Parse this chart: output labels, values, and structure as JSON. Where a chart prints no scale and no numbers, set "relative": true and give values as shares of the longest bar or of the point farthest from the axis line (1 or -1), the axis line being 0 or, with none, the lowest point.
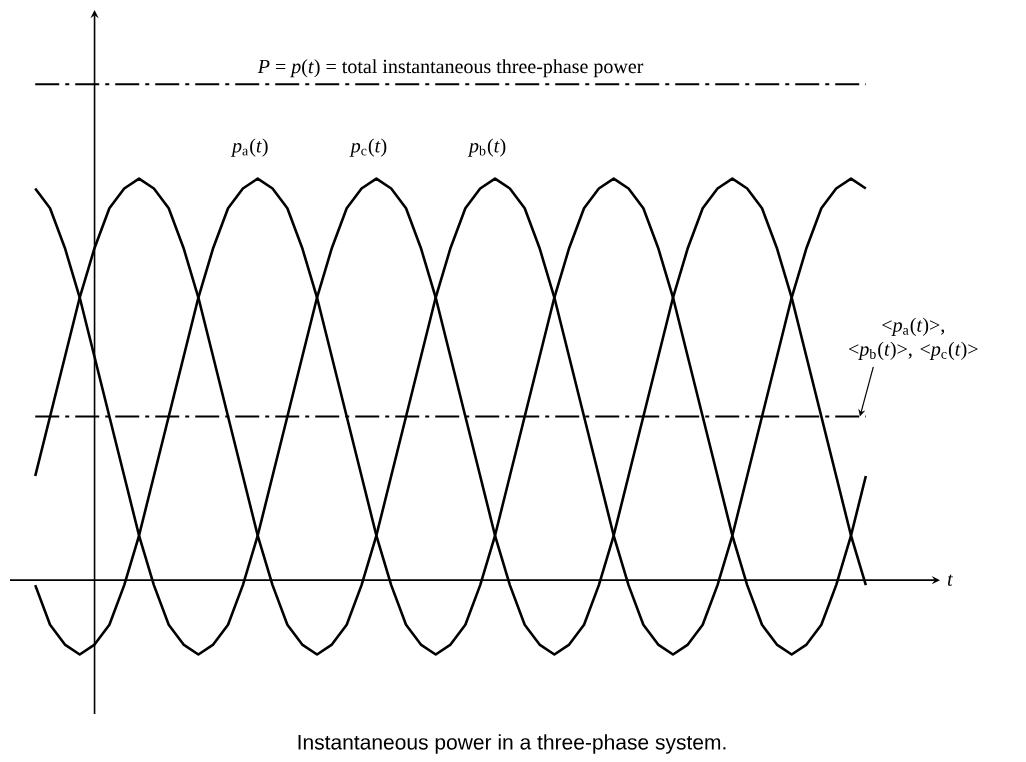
{
  "chart_data": {
    "type": "line",
    "relative": true,
    "xlabel": "t",
    "categories": [
      null,
      null,
      null,
      null,
      null,
      null,
      null,
      null,
      null,
      null,
      null,
      null,
      null,
      null,
      null,
      null,
      null,
      null,
      null,
      null,
      null,
      null,
      null,
      null,
      null,
      null,
      null,
      null,
      null,
      null,
      null,
      null,
      null,
      null,
      null,
      null,
      null,
      null,
      null,
      null,
      null,
      null,
      null,
      null,
      null,
      null,
      null,
      null,
      null,
      null,
      null,
      null,
      null,
      null,
      null,
      null,
      null
    ],
    "series": [
      {
        "name": "*P* = *p*(*t*) = total instantaneous three-phase power",
        "color": "#000000",
        "line_style": "dashed",
        "values": [
          1,
          1,
          1,
          1,
          1,
          1,
          1,
          1,
          1,
          1,
          1,
          1,
          1,
          1,
          1,
          1,
          1,
          1,
          1,
          1,
          1,
          1,
          1,
          1,
          1,
          1,
          1,
          1,
          1,
          1,
          1,
          1,
          1,
          1,
          1,
          1,
          1,
          1,
          1,
          1,
          1,
          1,
          1,
          1,
          1,
          1,
          1,
          1,
          1,
          1,
          1,
          1,
          1,
          1,
          1,
          1,
          1
        ]
      },
      {
        "name": "*p*$_{a}$(*t*)",
        "color": "#000000",
        "values": [
          -0.01,
          -0.09,
          -0.13,
          -0.15,
          -0.13,
          -0.09,
          -0.01,
          0.09,
          0.21,
          0.33,
          0.45,
          0.57,
          0.67,
          0.75,
          0.79,
          0.81,
          0.79,
          0.75,
          0.67,
          0.57,
          0.45,
          0.33,
          0.21,
          0.09,
          -0.01,
          -0.09,
          -0.13,
          -0.15,
          -0.13,
          -0.09,
          -0.01,
          0.09,
          0.21,
          0.33,
          0.45,
          0.57,
          0.67,
          0.75,
          0.79,
          0.81,
          0.79,
          0.75,
          0.67,
          0.57,
          0.45,
          0.33,
          0.21,
          0.09,
          -0.01,
          -0.09,
          -0.13,
          -0.15,
          -0.13,
          -0.09,
          -0.01,
          0.09,
          0.21
        ]
      },
      {
        "name": "*p*$_{c}$(*t*)",
        "color": "#000000",
        "values": [
          0.79,
          0.75,
          0.67,
          0.57,
          0.45,
          0.33,
          0.21,
          0.09,
          -0.01,
          -0.09,
          -0.13,
          -0.15,
          -0.13,
          -0.09,
          -0.01,
          0.09,
          0.21,
          0.33,
          0.45,
          0.57,
          0.67,
          0.75,
          0.79,
          0.81,
          0.79,
          0.75,
          0.67,
          0.57,
          0.45,
          0.33,
          0.21,
          0.09,
          -0.01,
          -0.09,
          -0.13,
          -0.15,
          -0.13,
          -0.09,
          -0.01,
          0.09,
          0.21,
          0.33,
          0.45,
          0.57,
          0.67,
          0.75,
          0.79,
          0.81,
          0.79,
          0.75,
          0.67,
          0.57,
          0.45,
          0.33,
          0.21,
          0.09,
          -0.01
        ]
      },
      {
        "name": "*p*$_{b}$(*t*)",
        "color": "#000000",
        "values": [
          0.21,
          0.33,
          0.45,
          0.57,
          0.67,
          0.75,
          0.79,
          0.81,
          0.79,
          0.75,
          0.67,
          0.57,
          0.45,
          0.33,
          0.21,
          0.09,
          -0.01,
          -0.09,
          -0.13,
          -0.15,
          -0.13,
          -0.09,
          -0.01,
          0.09,
          0.21,
          0.33,
          0.45,
          0.57,
          0.67,
          0.75,
          0.79,
          0.81,
          0.79,
          0.75,
          0.67,
          0.57,
          0.45,
          0.33,
          0.21,
          0.09,
          -0.01,
          -0.09,
          -0.13,
          -0.15,
          -0.13,
          -0.09,
          -0.01,
          0.09,
          0.21,
          0.33,
          0.45,
          0.57,
          0.67,
          0.75,
          0.79,
          0.81,
          0.79
        ]
      },
      {
        "name": "<*p*$_{a}$(*t*)>, <*p*$_{b}$(*t*)>, <*p*$_{c}$(*t*)>",
        "color": "#000000",
        "line_style": "dashed",
        "values": [
          0.33,
          0.33,
          0.33,
          0.33,
          0.33,
          0.33,
          0.33,
          0.33,
          0.33,
          0.33,
          0.33,
          0.33,
          0.33,
          0.33,
          0.33,
          0.33,
          0.33,
          0.33,
          0.33,
          0.33,
          0.33,
          0.33,
          0.33,
          0.33,
          0.33,
          0.33,
          0.33,
          0.33,
          0.33,
          0.33,
          0.33,
          0.33,
          0.33,
          0.33,
          0.33,
          0.33,
          0.33,
          0.33,
          0.33,
          0.33,
          0.33,
          0.33,
          0.33,
          0.33,
          0.33,
          0.33,
          0.33,
          0.33,
          0.33,
          0.33,
          0.33,
          0.33,
          0.33,
          0.33,
          0.33,
          0.33,
          0.33
        ]
      }
    ],
    "annotations": [
      "Instantaneous power in a three-phase system."
    ]
  }
}
